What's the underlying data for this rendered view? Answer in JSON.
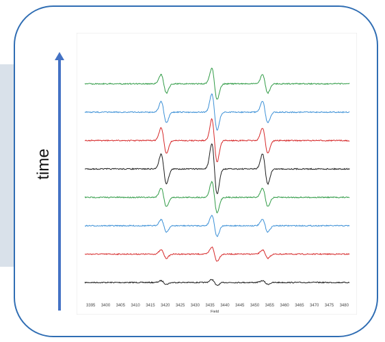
{
  "annotation": {
    "label": "time"
  },
  "colors": {
    "frame": "#2f6db3",
    "arrow": "#4472c4",
    "panel": "#d9e1ea"
  },
  "chart_data": {
    "type": "line",
    "title": "",
    "xlabel": "Field",
    "ylabel": "",
    "xlim": [
      3393,
      3482
    ],
    "x_ticks": [
      3395,
      3400,
      3405,
      3410,
      3415,
      3420,
      3425,
      3430,
      3435,
      3440,
      3445,
      3450,
      3455,
      3460,
      3465,
      3470,
      3475,
      3480
    ],
    "grid": false,
    "lines_centers": [
      3419.5,
      3436.5,
      3453.5
    ],
    "stack_order": "bottom-to-top",
    "series": [
      {
        "color": "#1a1a1a",
        "amplitude": 0.12
      },
      {
        "color": "#d62728",
        "amplitude": 0.28
      },
      {
        "color": "#3a8fd6",
        "amplitude": 0.42
      },
      {
        "color": "#2e9a44",
        "amplitude": 0.62
      },
      {
        "color": "#1a1a1a",
        "amplitude": 1.0
      },
      {
        "color": "#d62728",
        "amplitude": 0.85
      },
      {
        "color": "#3a8fd6",
        "amplitude": 0.72
      },
      {
        "color": "#2e9a44",
        "amplitude": 0.62
      }
    ]
  }
}
